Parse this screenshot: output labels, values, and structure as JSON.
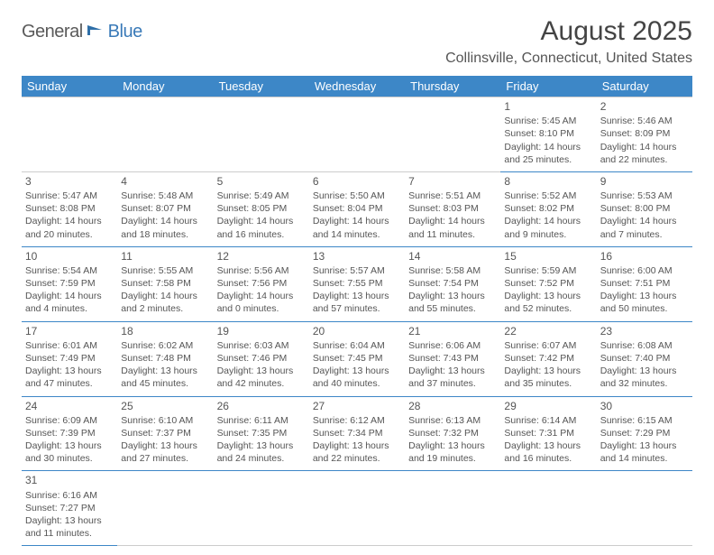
{
  "logo": {
    "part1": "General",
    "part2": "Blue"
  },
  "title": "August 2025",
  "location": "Collinsville, Connecticut, United States",
  "header_bg": "#3d87c7",
  "header_fg": "#ffffff",
  "row_divider": "#cccccc",
  "row_bottom": "#3d87c7",
  "text_color": "#555555",
  "day_headers": [
    "Sunday",
    "Monday",
    "Tuesday",
    "Wednesday",
    "Thursday",
    "Friday",
    "Saturday"
  ],
  "weeks": [
    [
      null,
      null,
      null,
      null,
      null,
      {
        "n": "1",
        "sr": "Sunrise: 5:45 AM",
        "ss": "Sunset: 8:10 PM",
        "d1": "Daylight: 14 hours",
        "d2": "and 25 minutes."
      },
      {
        "n": "2",
        "sr": "Sunrise: 5:46 AM",
        "ss": "Sunset: 8:09 PM",
        "d1": "Daylight: 14 hours",
        "d2": "and 22 minutes."
      }
    ],
    [
      {
        "n": "3",
        "sr": "Sunrise: 5:47 AM",
        "ss": "Sunset: 8:08 PM",
        "d1": "Daylight: 14 hours",
        "d2": "and 20 minutes."
      },
      {
        "n": "4",
        "sr": "Sunrise: 5:48 AM",
        "ss": "Sunset: 8:07 PM",
        "d1": "Daylight: 14 hours",
        "d2": "and 18 minutes."
      },
      {
        "n": "5",
        "sr": "Sunrise: 5:49 AM",
        "ss": "Sunset: 8:05 PM",
        "d1": "Daylight: 14 hours",
        "d2": "and 16 minutes."
      },
      {
        "n": "6",
        "sr": "Sunrise: 5:50 AM",
        "ss": "Sunset: 8:04 PM",
        "d1": "Daylight: 14 hours",
        "d2": "and 14 minutes."
      },
      {
        "n": "7",
        "sr": "Sunrise: 5:51 AM",
        "ss": "Sunset: 8:03 PM",
        "d1": "Daylight: 14 hours",
        "d2": "and 11 minutes."
      },
      {
        "n": "8",
        "sr": "Sunrise: 5:52 AM",
        "ss": "Sunset: 8:02 PM",
        "d1": "Daylight: 14 hours",
        "d2": "and 9 minutes."
      },
      {
        "n": "9",
        "sr": "Sunrise: 5:53 AM",
        "ss": "Sunset: 8:00 PM",
        "d1": "Daylight: 14 hours",
        "d2": "and 7 minutes."
      }
    ],
    [
      {
        "n": "10",
        "sr": "Sunrise: 5:54 AM",
        "ss": "Sunset: 7:59 PM",
        "d1": "Daylight: 14 hours",
        "d2": "and 4 minutes."
      },
      {
        "n": "11",
        "sr": "Sunrise: 5:55 AM",
        "ss": "Sunset: 7:58 PM",
        "d1": "Daylight: 14 hours",
        "d2": "and 2 minutes."
      },
      {
        "n": "12",
        "sr": "Sunrise: 5:56 AM",
        "ss": "Sunset: 7:56 PM",
        "d1": "Daylight: 14 hours",
        "d2": "and 0 minutes."
      },
      {
        "n": "13",
        "sr": "Sunrise: 5:57 AM",
        "ss": "Sunset: 7:55 PM",
        "d1": "Daylight: 13 hours",
        "d2": "and 57 minutes."
      },
      {
        "n": "14",
        "sr": "Sunrise: 5:58 AM",
        "ss": "Sunset: 7:54 PM",
        "d1": "Daylight: 13 hours",
        "d2": "and 55 minutes."
      },
      {
        "n": "15",
        "sr": "Sunrise: 5:59 AM",
        "ss": "Sunset: 7:52 PM",
        "d1": "Daylight: 13 hours",
        "d2": "and 52 minutes."
      },
      {
        "n": "16",
        "sr": "Sunrise: 6:00 AM",
        "ss": "Sunset: 7:51 PM",
        "d1": "Daylight: 13 hours",
        "d2": "and 50 minutes."
      }
    ],
    [
      {
        "n": "17",
        "sr": "Sunrise: 6:01 AM",
        "ss": "Sunset: 7:49 PM",
        "d1": "Daylight: 13 hours",
        "d2": "and 47 minutes."
      },
      {
        "n": "18",
        "sr": "Sunrise: 6:02 AM",
        "ss": "Sunset: 7:48 PM",
        "d1": "Daylight: 13 hours",
        "d2": "and 45 minutes."
      },
      {
        "n": "19",
        "sr": "Sunrise: 6:03 AM",
        "ss": "Sunset: 7:46 PM",
        "d1": "Daylight: 13 hours",
        "d2": "and 42 minutes."
      },
      {
        "n": "20",
        "sr": "Sunrise: 6:04 AM",
        "ss": "Sunset: 7:45 PM",
        "d1": "Daylight: 13 hours",
        "d2": "and 40 minutes."
      },
      {
        "n": "21",
        "sr": "Sunrise: 6:06 AM",
        "ss": "Sunset: 7:43 PM",
        "d1": "Daylight: 13 hours",
        "d2": "and 37 minutes."
      },
      {
        "n": "22",
        "sr": "Sunrise: 6:07 AM",
        "ss": "Sunset: 7:42 PM",
        "d1": "Daylight: 13 hours",
        "d2": "and 35 minutes."
      },
      {
        "n": "23",
        "sr": "Sunrise: 6:08 AM",
        "ss": "Sunset: 7:40 PM",
        "d1": "Daylight: 13 hours",
        "d2": "and 32 minutes."
      }
    ],
    [
      {
        "n": "24",
        "sr": "Sunrise: 6:09 AM",
        "ss": "Sunset: 7:39 PM",
        "d1": "Daylight: 13 hours",
        "d2": "and 30 minutes."
      },
      {
        "n": "25",
        "sr": "Sunrise: 6:10 AM",
        "ss": "Sunset: 7:37 PM",
        "d1": "Daylight: 13 hours",
        "d2": "and 27 minutes."
      },
      {
        "n": "26",
        "sr": "Sunrise: 6:11 AM",
        "ss": "Sunset: 7:35 PM",
        "d1": "Daylight: 13 hours",
        "d2": "and 24 minutes."
      },
      {
        "n": "27",
        "sr": "Sunrise: 6:12 AM",
        "ss": "Sunset: 7:34 PM",
        "d1": "Daylight: 13 hours",
        "d2": "and 22 minutes."
      },
      {
        "n": "28",
        "sr": "Sunrise: 6:13 AM",
        "ss": "Sunset: 7:32 PM",
        "d1": "Daylight: 13 hours",
        "d2": "and 19 minutes."
      },
      {
        "n": "29",
        "sr": "Sunrise: 6:14 AM",
        "ss": "Sunset: 7:31 PM",
        "d1": "Daylight: 13 hours",
        "d2": "and 16 minutes."
      },
      {
        "n": "30",
        "sr": "Sunrise: 6:15 AM",
        "ss": "Sunset: 7:29 PM",
        "d1": "Daylight: 13 hours",
        "d2": "and 14 minutes."
      }
    ],
    [
      {
        "n": "31",
        "sr": "Sunrise: 6:16 AM",
        "ss": "Sunset: 7:27 PM",
        "d1": "Daylight: 13 hours",
        "d2": "and 11 minutes."
      },
      null,
      null,
      null,
      null,
      null,
      null
    ]
  ]
}
